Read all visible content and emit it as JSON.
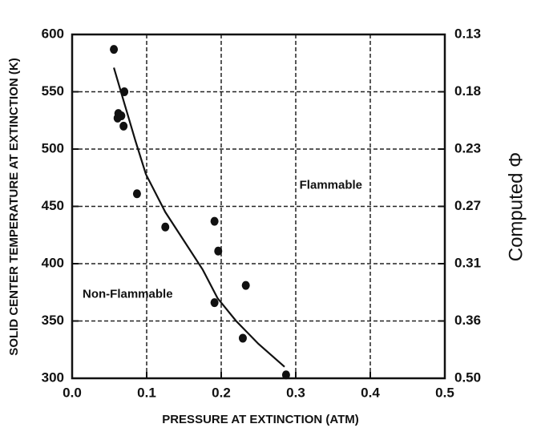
{
  "chart_data": {
    "type": "scatter",
    "xlabel": "PRESSURE AT EXTINCTION (ATM)",
    "ylabel": "SOLID CENTER TEMPERATURE AT EXTINCTION (K)",
    "y2label": "Computed Φ",
    "xlim": [
      0.0,
      0.5
    ],
    "xticks": [
      {
        "value": 0,
        "label": "0.0"
      },
      0.1,
      0.2,
      0.3,
      0.4,
      0.5
    ],
    "ylim": [
      300,
      600
    ],
    "yticks": [
      300,
      350,
      400,
      450,
      500,
      550,
      600
    ],
    "y2ticks": [
      {
        "value": 0.5,
        "label": "0.50"
      },
      0.36,
      0.31,
      0.27,
      0.23,
      0.18,
      0.13
    ],
    "grid": true,
    "color": "#111111",
    "series": [
      {
        "x": [
          0.056,
          0.07,
          0.062,
          0.061,
          0.066,
          0.069,
          0.087,
          0.125,
          0.191,
          0.196,
          0.191,
          0.233,
          0.229,
          0.287
        ],
        "values": [
          587,
          550,
          531,
          527,
          529,
          520,
          461,
          432,
          437,
          411,
          366,
          381,
          335,
          303
        ]
      }
    ],
    "curve": {
      "x": [
        0.056,
        0.07,
        0.085,
        0.099,
        0.125,
        0.15,
        0.175,
        0.195,
        0.22,
        0.25,
        0.285
      ],
      "values": [
        571,
        540,
        507,
        478,
        445,
        420,
        395,
        370,
        350,
        330,
        310
      ]
    },
    "annotations": [
      {
        "text": "Flammable",
        "x": 0.305,
        "y": 468
      },
      {
        "text": "Non-Flammable",
        "x": 0.014,
        "y": 373
      }
    ]
  }
}
